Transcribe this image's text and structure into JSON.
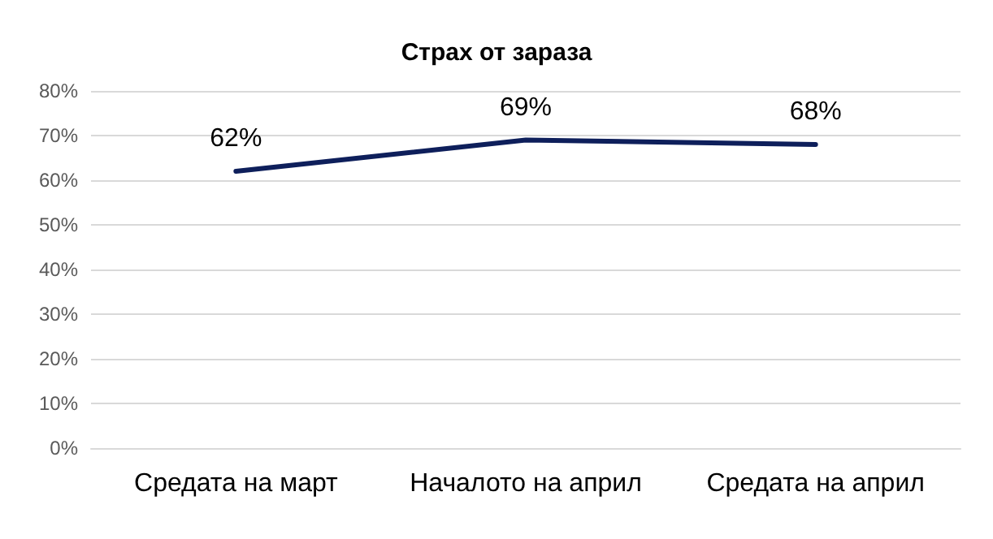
{
  "chart_data": {
    "type": "line",
    "title": "Страх от зараза",
    "categories": [
      "Средата на март",
      "Началото на април",
      "Средата на април"
    ],
    "values": [
      62,
      69,
      68
    ],
    "color": "#0e1f5b",
    "value_labels": [
      "62%",
      "69%",
      "68%"
    ],
    "ylim": [
      0,
      80
    ],
    "yticks": [
      {
        "value": 0,
        "label": "0%"
      },
      {
        "value": 10,
        "label": "10%"
      },
      {
        "value": 20,
        "label": "20%"
      },
      {
        "value": 30,
        "label": "30%"
      },
      {
        "value": 40,
        "label": "40%"
      },
      {
        "value": 50,
        "label": "50%"
      },
      {
        "value": 60,
        "label": "60%"
      },
      {
        "value": 70,
        "label": "70%"
      },
      {
        "value": 80,
        "label": "80%"
      }
    ],
    "grid": true,
    "marker": "none",
    "line_style": "solid"
  }
}
